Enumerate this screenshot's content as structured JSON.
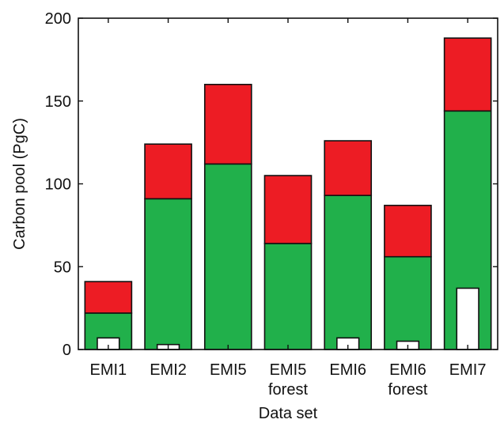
{
  "chart_data": {
    "type": "bar",
    "stacked": true,
    "categories": [
      [
        "EMI1"
      ],
      [
        "EMI2"
      ],
      [
        "EMI5"
      ],
      [
        "EMI5",
        "forest"
      ],
      [
        "EMI6"
      ],
      [
        "EMI6",
        "forest"
      ],
      [
        "EMI7"
      ]
    ],
    "series": [
      {
        "color": "#21b04b",
        "values": [
          22,
          91,
          112,
          64,
          93,
          56,
          144
        ]
      },
      {
        "color": "#ed1c24",
        "values": [
          19,
          33,
          48,
          41,
          33,
          31,
          44
        ]
      }
    ],
    "overlay": {
      "color": "#ffffff",
      "values": [
        7,
        3,
        0,
        0,
        7,
        5,
        37
      ]
    },
    "xlabel": "Data set",
    "ylabel": "Carbon pool (PgC)",
    "ylim": [
      0,
      200
    ],
    "yticks": [
      0,
      50,
      100,
      150,
      200
    ],
    "grid": false
  }
}
